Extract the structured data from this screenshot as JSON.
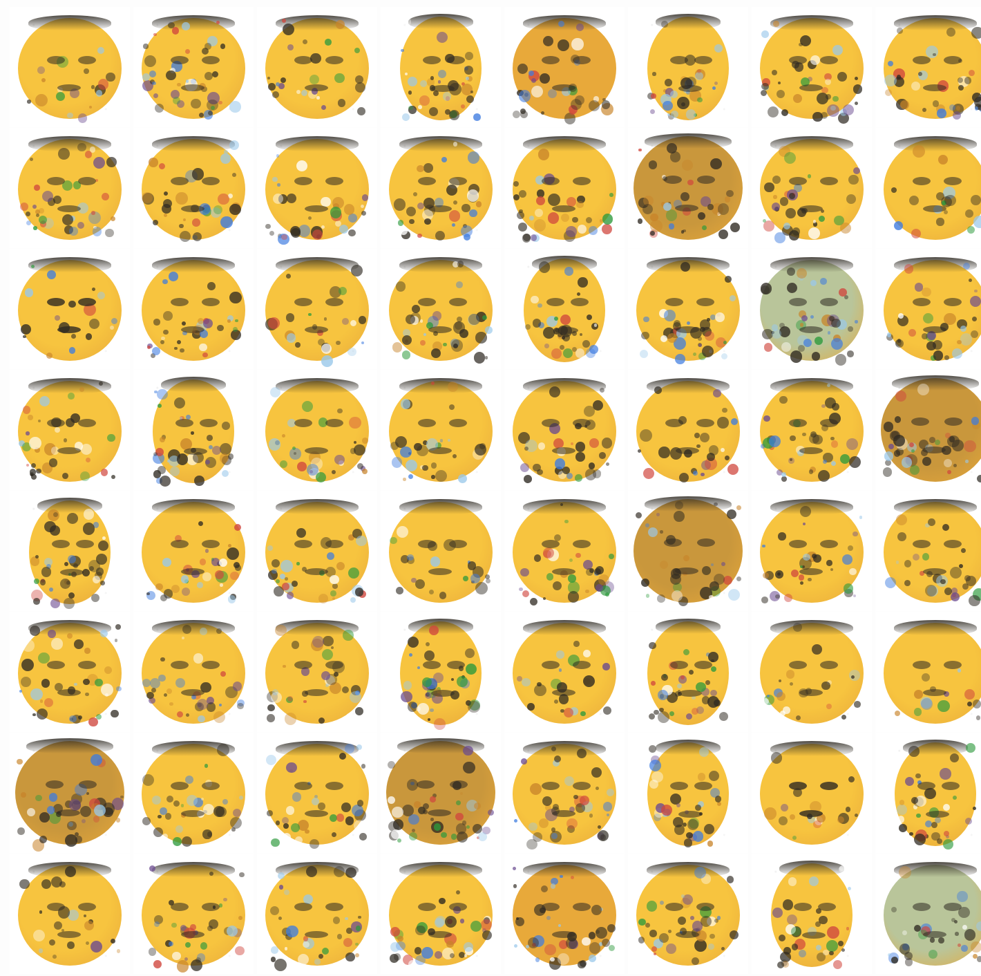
{
  "sample_grid": {
    "rows": 8,
    "cols": 8,
    "palette": {
      "face": "#f7c43f",
      "face_dark": "#e8a93a",
      "dark": "#2f2a22",
      "noise": [
        "#3d7be0",
        "#2d9a3c",
        "#d0463d",
        "#ffffff",
        "#6a4a8f",
        "#9ac8ea",
        "#c8842a"
      ]
    },
    "tiles": [
      {
        "variant": "plain",
        "noise": 0.2
      },
      {
        "variant": "noisy",
        "noise": 0.8
      },
      {
        "variant": "plain",
        "noise": 0.4
      },
      {
        "variant": "narrow",
        "noise": 0.7
      },
      {
        "variant": "warm",
        "noise": 0.6
      },
      {
        "variant": "narrow",
        "noise": 0.6
      },
      {
        "variant": "noisy",
        "noise": 0.7
      },
      {
        "variant": "noisy",
        "noise": 0.7
      },
      {
        "variant": "noisy",
        "noise": 0.7
      },
      {
        "variant": "noisy",
        "noise": 0.6
      },
      {
        "variant": "noisy",
        "noise": 0.6
      },
      {
        "variant": "noisy",
        "noise": 0.6
      },
      {
        "variant": "noisy",
        "noise": 0.6
      },
      {
        "variant": "dark",
        "noise": 0.7
      },
      {
        "variant": "noisy",
        "noise": 0.6
      },
      {
        "variant": "plain",
        "noise": 0.2
      },
      {
        "variant": "smile",
        "noise": 0.2
      },
      {
        "variant": "noisy",
        "noise": 0.6
      },
      {
        "variant": "plain",
        "noise": 0.4
      },
      {
        "variant": "noisy",
        "noise": 0.7
      },
      {
        "variant": "narrow",
        "noise": 0.6
      },
      {
        "variant": "noisy",
        "noise": 0.7
      },
      {
        "variant": "blue",
        "noise": 0.8
      },
      {
        "variant": "noisy",
        "noise": 0.6
      },
      {
        "variant": "noisy",
        "noise": 0.7
      },
      {
        "variant": "narrow",
        "noise": 0.7
      },
      {
        "variant": "plain",
        "noise": 0.5
      },
      {
        "variant": "noisy",
        "noise": 0.5
      },
      {
        "variant": "noisy",
        "noise": 0.6
      },
      {
        "variant": "plain",
        "noise": 0.4
      },
      {
        "variant": "noisy",
        "noise": 0.7
      },
      {
        "variant": "dark",
        "noise": 0.8
      },
      {
        "variant": "narrow",
        "noise": 0.8
      },
      {
        "variant": "noisy",
        "noise": 0.6
      },
      {
        "variant": "noisy",
        "noise": 0.6
      },
      {
        "variant": "plain",
        "noise": 0.3
      },
      {
        "variant": "noisy",
        "noise": 0.6
      },
      {
        "variant": "dark",
        "noise": 0.6
      },
      {
        "variant": "noisy",
        "noise": 0.6
      },
      {
        "variant": "noisy",
        "noise": 0.5
      },
      {
        "variant": "noisy",
        "noise": 0.7
      },
      {
        "variant": "noisy",
        "noise": 0.6
      },
      {
        "variant": "noisy",
        "noise": 0.6
      },
      {
        "variant": "narrow",
        "noise": 0.7
      },
      {
        "variant": "plain",
        "noise": 0.3
      },
      {
        "variant": "narrow",
        "noise": 0.7
      },
      {
        "variant": "plain",
        "noise": 0.3
      },
      {
        "variant": "plain",
        "noise": 0.1
      },
      {
        "variant": "dark",
        "noise": 0.7
      },
      {
        "variant": "noisy",
        "noise": 0.6
      },
      {
        "variant": "noisy",
        "noise": 0.6
      },
      {
        "variant": "dark",
        "noise": 0.8
      },
      {
        "variant": "noisy",
        "noise": 0.7
      },
      {
        "variant": "narrow",
        "noise": 0.6
      },
      {
        "variant": "smile",
        "noise": 0.2
      },
      {
        "variant": "narrow",
        "noise": 0.6
      },
      {
        "variant": "plain",
        "noise": 0.3
      },
      {
        "variant": "noisy",
        "noise": 0.6
      },
      {
        "variant": "noisy",
        "noise": 0.6
      },
      {
        "variant": "noisy",
        "noise": 0.7
      },
      {
        "variant": "warm",
        "noise": 0.8
      },
      {
        "variant": "noisy",
        "noise": 0.7
      },
      {
        "variant": "narrow",
        "noise": 0.6
      },
      {
        "variant": "blue",
        "noise": 0.5
      }
    ]
  }
}
